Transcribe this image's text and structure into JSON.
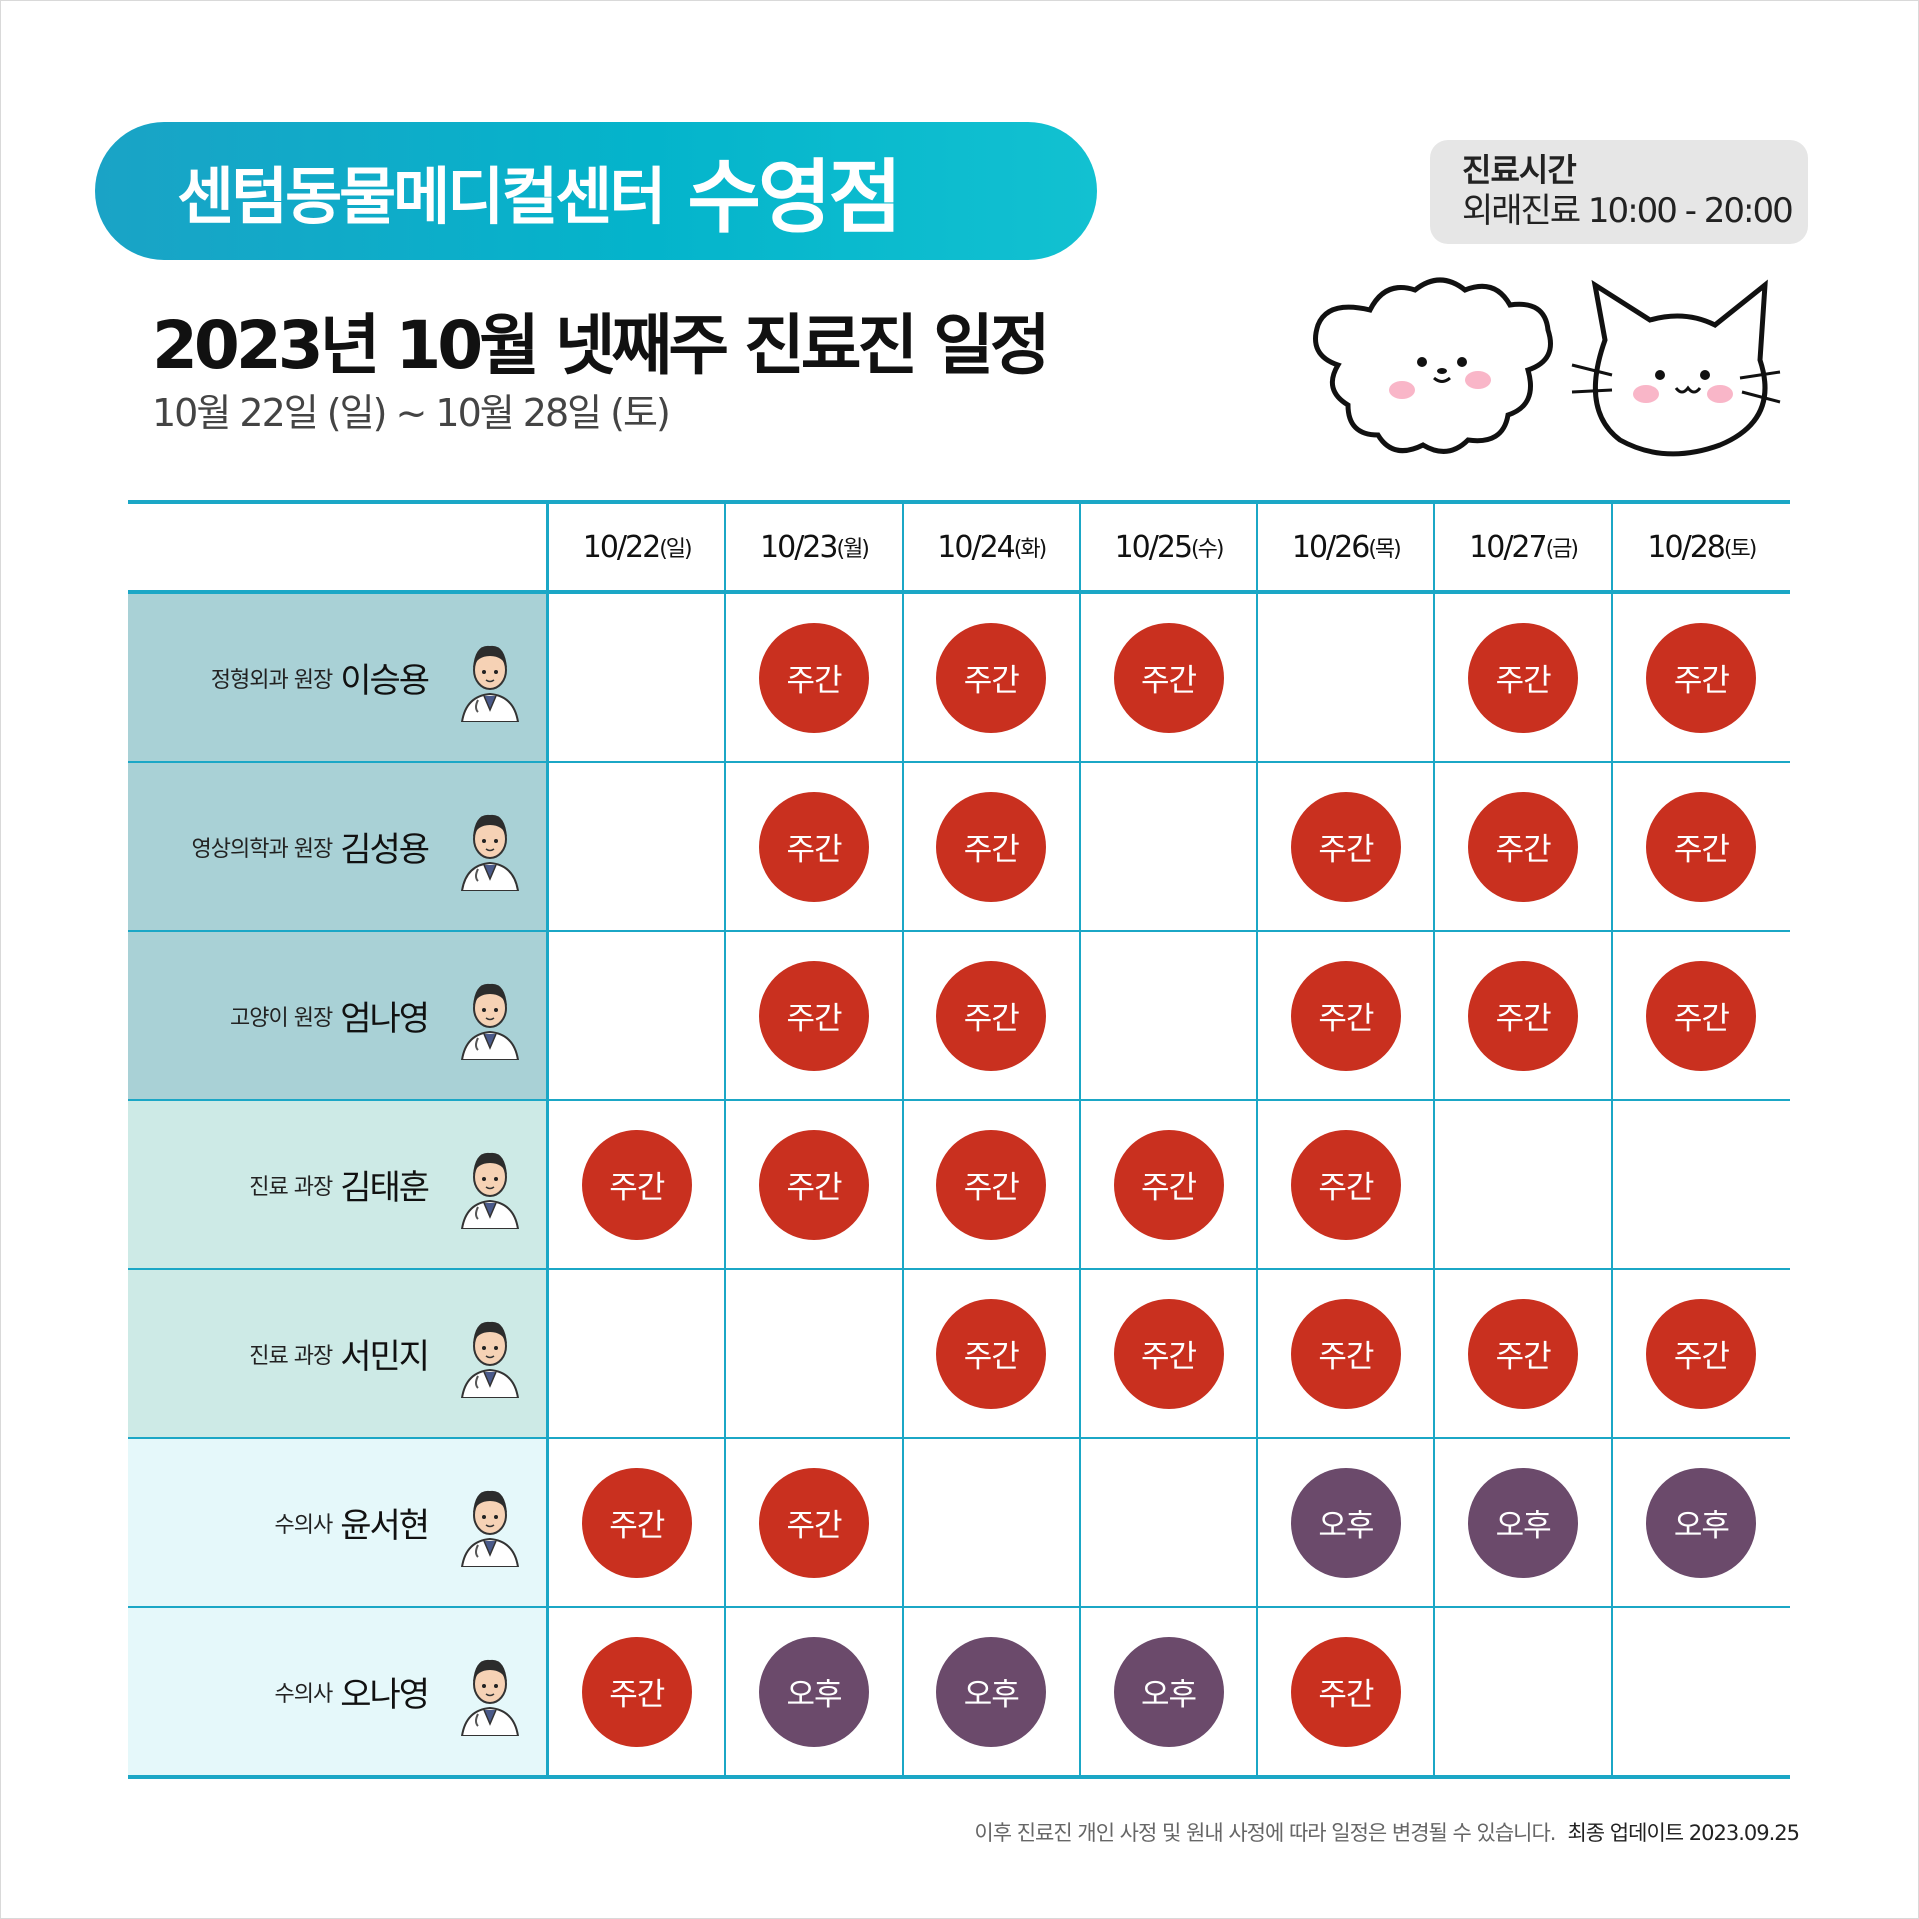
{
  "header": {
    "brand_name": "센텀동물메디컬센터",
    "branch": "수영점",
    "title": "2023년 10월 넷째주 진료진 일정",
    "subtitle": "10월 22일 (일) ~ 10월 28일 (토)"
  },
  "hours": {
    "title": "진료시간",
    "text": "외래진료 10:00 - 20:00"
  },
  "colors": {
    "accent": "#1ba7c6",
    "day_badge": "#c9301f",
    "pm_badge": "#6b4a6b"
  },
  "table": {
    "columns": [
      {
        "date": "10/22",
        "dow": "(일)"
      },
      {
        "date": "10/23",
        "dow": "(월)"
      },
      {
        "date": "10/24",
        "dow": "(화)"
      },
      {
        "date": "10/25",
        "dow": "(수)"
      },
      {
        "date": "10/26",
        "dow": "(목)"
      },
      {
        "date": "10/27",
        "dow": "(금)"
      },
      {
        "date": "10/28",
        "dow": "(토)"
      }
    ],
    "rows": [
      {
        "role": "정형외과 원장",
        "name": "이승용",
        "shifts": [
          "",
          "주간",
          "주간",
          "주간",
          "",
          "주간",
          "주간"
        ]
      },
      {
        "role": "영상의학과 원장",
        "name": "김성용",
        "shifts": [
          "",
          "주간",
          "주간",
          "",
          "주간",
          "주간",
          "주간"
        ]
      },
      {
        "role": "고양이 원장",
        "name": "엄나영",
        "shifts": [
          "",
          "주간",
          "주간",
          "",
          "주간",
          "주간",
          "주간"
        ]
      },
      {
        "role": "진료 과장",
        "name": "김태훈",
        "shifts": [
          "주간",
          "주간",
          "주간",
          "주간",
          "주간",
          "",
          ""
        ]
      },
      {
        "role": "진료 과장",
        "name": "서민지",
        "shifts": [
          "",
          "",
          "주간",
          "주간",
          "주간",
          "주간",
          "주간"
        ]
      },
      {
        "role": "수의사",
        "name": "윤서현",
        "shifts": [
          "주간",
          "주간",
          "",
          "",
          "오후",
          "오후",
          "오후"
        ]
      },
      {
        "role": "수의사",
        "name": "오나영",
        "shifts": [
          "주간",
          "오후",
          "오후",
          "오후",
          "주간",
          "",
          ""
        ]
      }
    ]
  },
  "footer": {
    "notice": "이후 진료진 개인 사정 및 원내 사정에 따라 일정은 변경될 수 있습니다.",
    "updated": "최종 업데이트  2023.09.25"
  },
  "icons": [
    "dog-icon",
    "cat-icon",
    "doctor-avatar-icon"
  ]
}
